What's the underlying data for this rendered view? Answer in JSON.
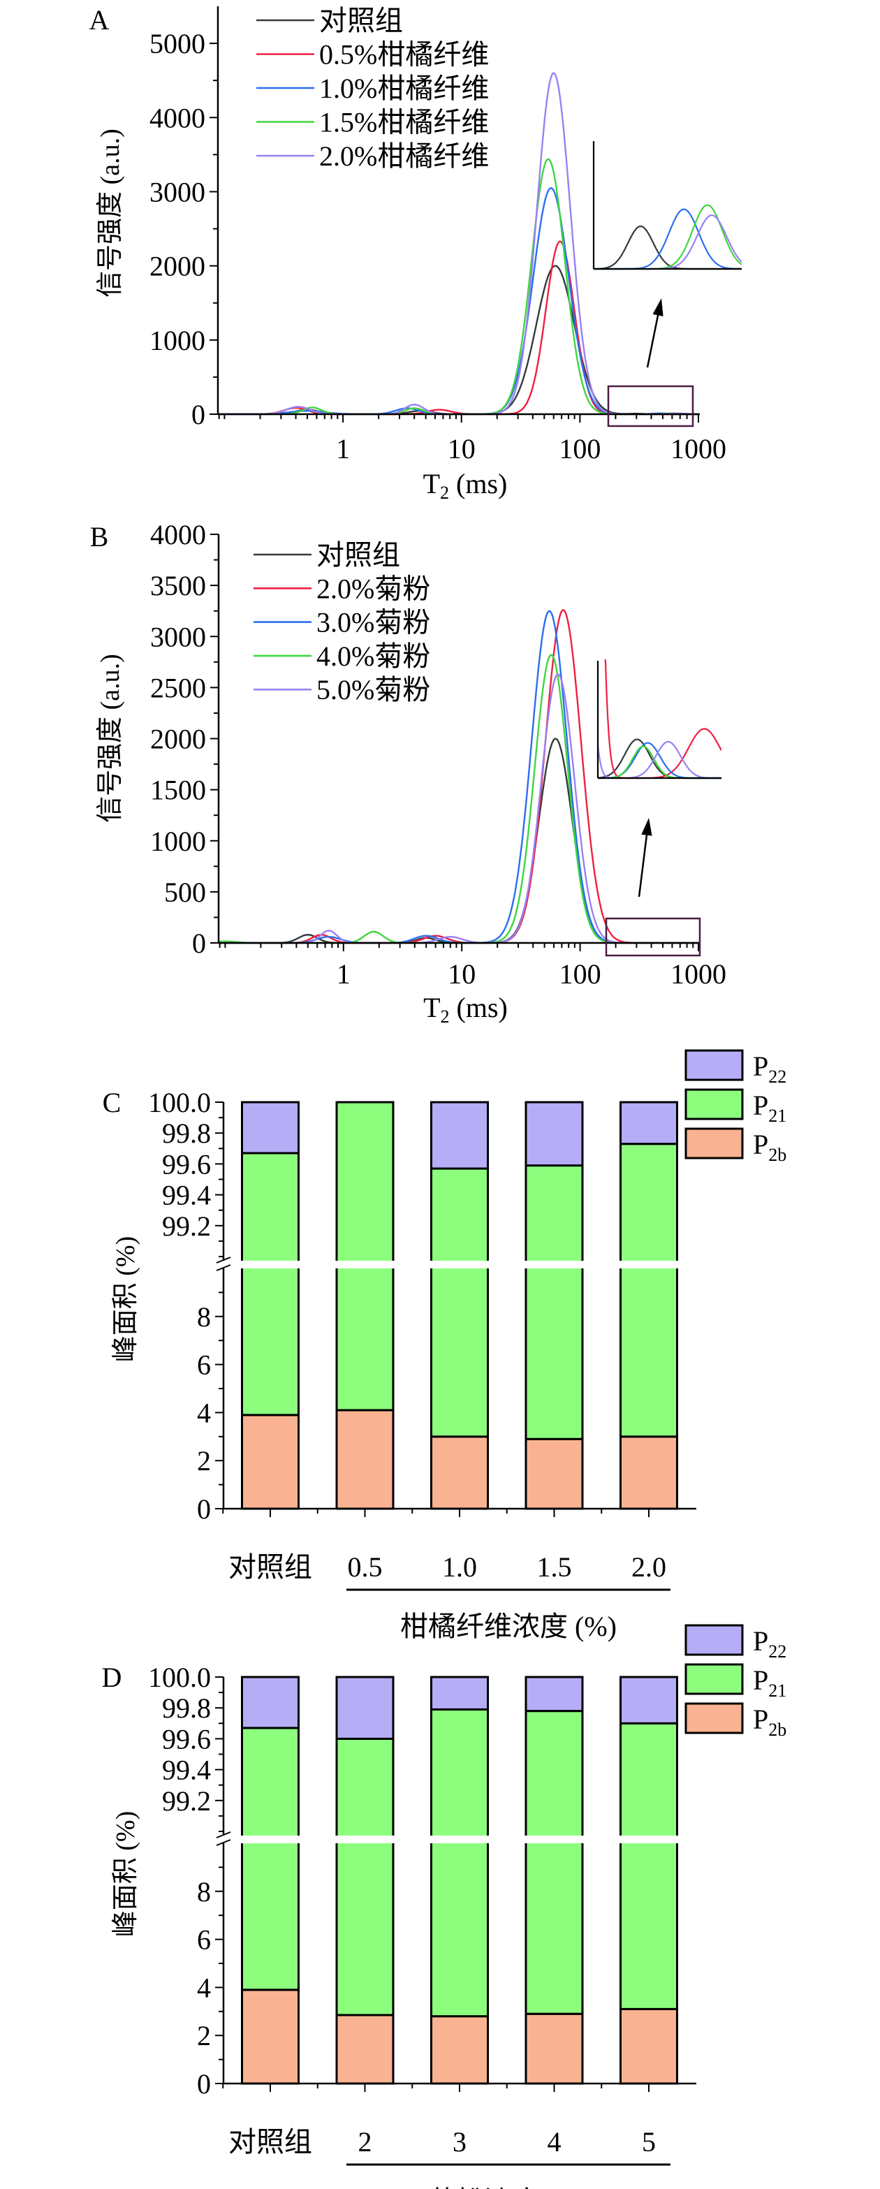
{
  "chart_data": [
    {
      "panel": "A",
      "type": "line",
      "xscale": "log",
      "xlabel": "T",
      "xlabel_sub": "2",
      "xlabel_unit": " (ms)",
      "ylabel": "信号强度 (a.u.)",
      "xlim": [
        0.088,
        1000
      ],
      "ylim": [
        0,
        5500
      ],
      "xticks": [
        1,
        10,
        100,
        1000
      ],
      "xtick_labels": [
        "1",
        "10",
        "100",
        "1000"
      ],
      "yticks": [
        0,
        1000,
        2000,
        3000,
        4000,
        5000
      ],
      "ytick_labels": [
        "0",
        "1000",
        "2000",
        "3000",
        "4000",
        "5000"
      ],
      "legend_position": "top-left",
      "peak_model": "sum of log-normal peaks: [T2 center (ms), amplitude (a.u.), width (decades)]",
      "series": [
        {
          "name": "对照组",
          "color": "#333b3b",
          "peaks": [
            [
              62,
              2000,
              0.16
            ],
            [
              0.5,
              60,
              0.1
            ],
            [
              4.5,
              45,
              0.1
            ],
            [
              300,
              8,
              0.06
            ]
          ],
          "inset_peaks": [
            [
              300,
              25,
              0.06
            ]
          ]
        },
        {
          "name": "0.5%柑橘纤维",
          "color": "#ef2040",
          "peaks": [
            [
              68,
              2330,
              0.12
            ],
            [
              0.4,
              85,
              0.1
            ],
            [
              6.5,
              60,
              0.1
            ]
          ],
          "inset_peaks": []
        },
        {
          "name": "1.0%柑橘纤维",
          "color": "#2b6ff0",
          "peaks": [
            [
              57,
              3050,
              0.15
            ],
            [
              0.5,
              45,
              0.15
            ],
            [
              3.5,
              80,
              0.1
            ],
            [
              480,
              12,
              0.07
            ]
          ],
          "inset_peaks": [
            [
              480,
              35,
              0.07
            ]
          ]
        },
        {
          "name": "1.5%柑橘纤维",
          "color": "#3fd63f",
          "peaks": [
            [
              54,
              3440,
              0.14
            ],
            [
              0.55,
              90,
              0.08
            ],
            [
              4,
              80,
              0.08
            ],
            [
              620,
              13,
              0.07
            ]
          ],
          "inset_peaks": [
            [
              620,
              37.5,
              0.07
            ]
          ]
        },
        {
          "name": "2.0%柑橘纤维",
          "color": "#9b80f2",
          "peaks": [
            [
              60,
              4600,
              0.14
            ],
            [
              0.42,
              100,
              0.1
            ],
            [
              4,
              130,
              0.08
            ],
            [
              650,
              11,
              0.07
            ]
          ],
          "inset_peaks": [
            [
              650,
              31.5,
              0.07
            ]
          ]
        }
      ],
      "inset": {
        "xlim": [
          180,
          900
        ],
        "ylim": [
          0,
          75
        ]
      }
    },
    {
      "panel": "B",
      "type": "line",
      "xscale": "log",
      "xlabel": "T",
      "xlabel_sub": "2",
      "xlabel_unit": " (ms)",
      "ylabel": "信号强度 (a.u.)",
      "xlim": [
        0.088,
        1000
      ],
      "ylim": [
        0,
        4000
      ],
      "xticks": [
        1,
        10,
        100,
        1000
      ],
      "xtick_labels": [
        "1",
        "10",
        "100",
        "1000"
      ],
      "yticks": [
        0,
        500,
        1000,
        1500,
        2000,
        2500,
        3000,
        3500,
        4000
      ],
      "ytick_labels": [
        "0",
        "500",
        "1000",
        "1500",
        "2000",
        "2500",
        "3000",
        "3500",
        "4000"
      ],
      "legend_position": "top-left",
      "peak_model": "sum of log-normal peaks: [T2 center (ms), amplitude (a.u.), width (decades)]",
      "series": [
        {
          "name": "对照组",
          "color": "#333b3b",
          "peaks": [
            [
              62,
              2000,
              0.14
            ],
            [
              0.5,
              80,
              0.08
            ],
            [
              5,
              50,
              0.08
            ]
          ],
          "inset_peaks": [
            [
              300,
              33,
              0.07
            ]
          ]
        },
        {
          "name": "2.0%菊粉",
          "color": "#ef2040",
          "peaks": [
            [
              72,
              3260,
              0.15
            ],
            [
              0.65,
              80,
              0.08
            ],
            [
              6,
              70,
              0.1
            ]
          ],
          "inset_peaks": [
            [
              720,
              42,
              0.09
            ],
            [
              150,
              2000,
              0.05
            ]
          ]
        },
        {
          "name": "3.0%菊粉",
          "color": "#2b6ff0",
          "peaks": [
            [
              55,
              3250,
              0.15
            ],
            [
              0.75,
              60,
              0.1
            ],
            [
              5,
              70,
              0.1
            ]
          ],
          "inset_peaks": [
            [
              345,
              30,
              0.07
            ]
          ]
        },
        {
          "name": "4.0%菊粉",
          "color": "#3fd63f",
          "peaks": [
            [
              57,
              2820,
              0.14
            ],
            [
              1.8,
              110,
              0.08
            ],
            [
              0.1,
              15,
              0.1
            ]
          ],
          "inset_peaks": [
            [
              325,
              27,
              0.06
            ]
          ]
        },
        {
          "name": "5.0%菊粉",
          "color": "#9b80f2",
          "peaks": [
            [
              65,
              2630,
              0.14
            ],
            [
              0.75,
              120,
              0.07
            ],
            [
              8,
              60,
              0.1
            ]
          ],
          "inset_peaks": [
            [
              450,
              31,
              0.07
            ],
            [
              150,
              200,
              0.04
            ]
          ]
        }
      ],
      "inset": {
        "xlim": [
          180,
          900
        ],
        "ylim": [
          0,
          100
        ]
      }
    },
    {
      "panel": "C",
      "type": "bar",
      "stacked": true,
      "broken_axis": {
        "lower": [
          0,
          10
        ],
        "upper": [
          99.0,
          100.0
        ]
      },
      "ylabel": "峰面积 (%)",
      "xlabel": "柑橘纤维浓度 (%)",
      "categories": [
        "对照组",
        "0.5",
        "1.0",
        "1.5",
        "2.0"
      ],
      "yticks_lower": [
        "0",
        "2",
        "4",
        "6",
        "8"
      ],
      "yticks_upper": [
        "99.2",
        "99.4",
        "99.6",
        "99.8",
        "100.0"
      ],
      "legend_position": "top-right",
      "series": [
        {
          "name": "P",
          "sub": "2b",
          "color": "#f9b392",
          "values": [
            3.9,
            4.1,
            3.0,
            2.9,
            3.0
          ]
        },
        {
          "name": "P",
          "sub": "21",
          "color": "#8dfd7e",
          "values": [
            95.77,
            95.9,
            96.57,
            96.69,
            96.73
          ]
        },
        {
          "name": "P",
          "sub": "22",
          "color": "#b5aef6",
          "values": [
            0.33,
            0.0,
            0.43,
            0.41,
            0.27
          ]
        }
      ]
    },
    {
      "panel": "D",
      "type": "bar",
      "stacked": true,
      "broken_axis": {
        "lower": [
          0,
          10
        ],
        "upper": [
          99.0,
          100.0
        ]
      },
      "ylabel": "峰面积 (%)",
      "xlabel": "菊粉浓度 (%)",
      "categories": [
        "对照组",
        "2",
        "3",
        "4",
        "5"
      ],
      "yticks_lower": [
        "0",
        "2",
        "4",
        "6",
        "8"
      ],
      "yticks_upper": [
        "99.2",
        "99.4",
        "99.6",
        "99.8",
        "100.0"
      ],
      "legend_position": "top-right",
      "series": [
        {
          "name": "P",
          "sub": "2b",
          "color": "#f9b392",
          "values": [
            3.9,
            2.85,
            2.8,
            2.9,
            3.1
          ]
        },
        {
          "name": "P",
          "sub": "21",
          "color": "#8dfd7e",
          "values": [
            95.77,
            96.75,
            96.99,
            96.88,
            96.6
          ]
        },
        {
          "name": "P",
          "sub": "22",
          "color": "#b5aef6",
          "values": [
            0.33,
            0.4,
            0.21,
            0.22,
            0.3
          ]
        }
      ]
    }
  ]
}
